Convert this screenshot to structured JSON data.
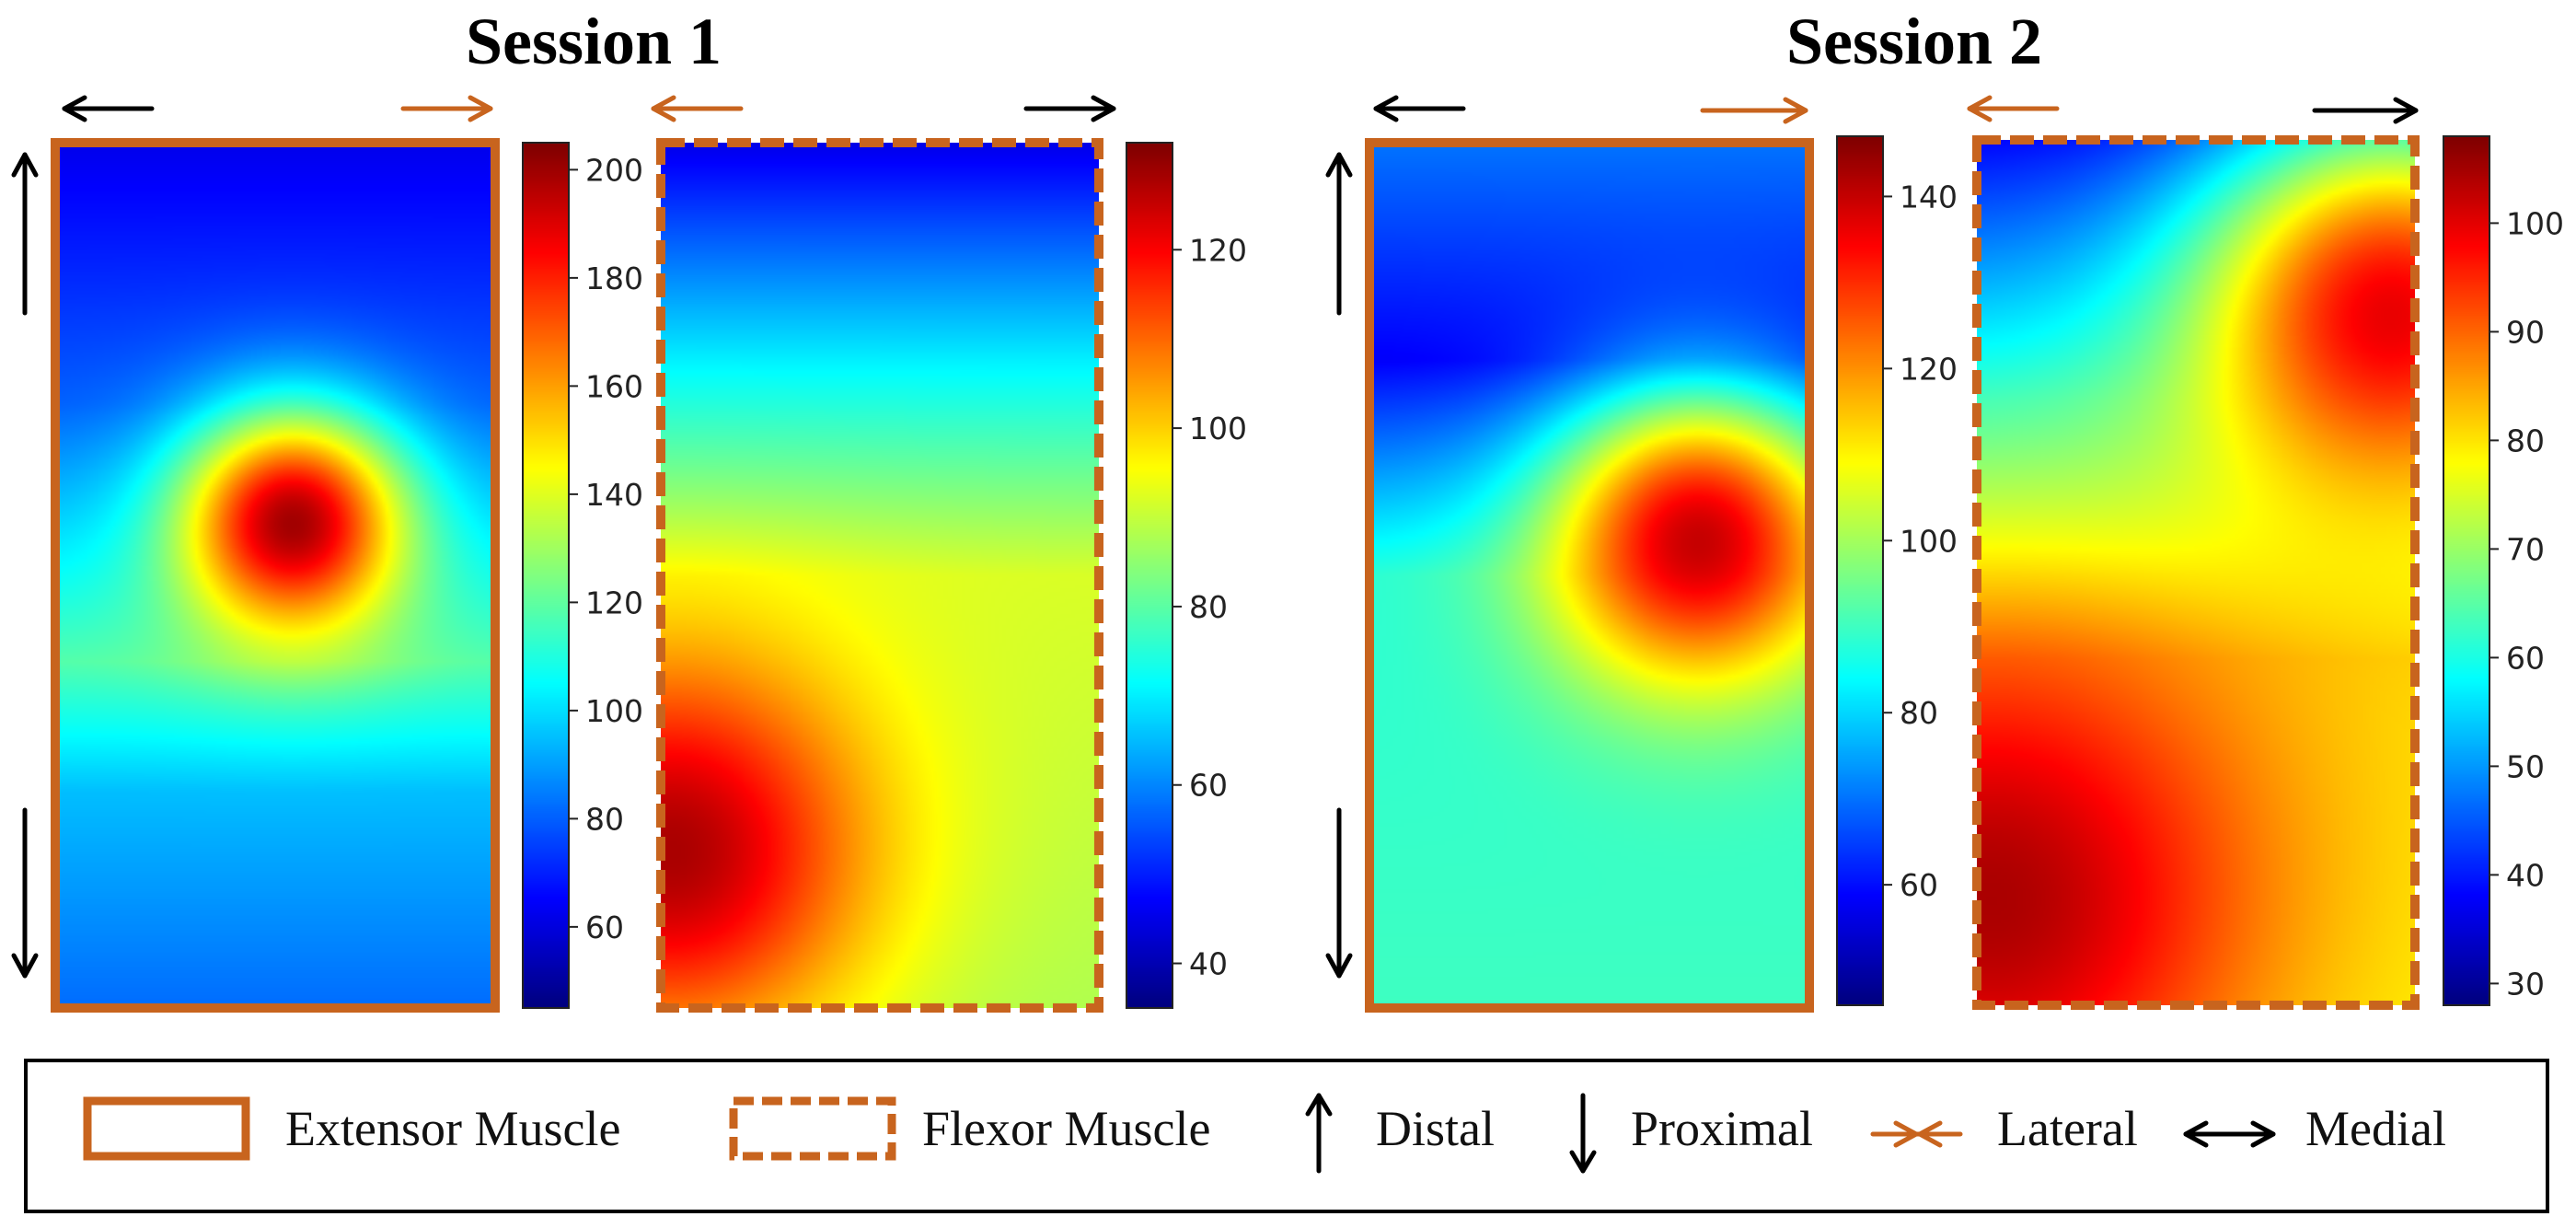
{
  "chart_data": [
    {
      "type": "heatmap",
      "session": "Session 1",
      "muscle": "Extensor Muscle",
      "colorbar": {
        "min": 45,
        "max": 205,
        "ticks": [
          60,
          80,
          100,
          120,
          140,
          160,
          180,
          200
        ]
      },
      "hotspots": [
        {
          "u": 0.54,
          "v": 0.44,
          "value": 205,
          "spread": 0.09
        }
      ],
      "base_gradient": [
        {
          "v": 0.0,
          "value": 62
        },
        {
          "v": 0.3,
          "value": 80
        },
        {
          "v": 0.6,
          "value": 118
        },
        {
          "v": 0.75,
          "value": 95
        },
        {
          "v": 1.0,
          "value": 82
        }
      ]
    },
    {
      "type": "heatmap",
      "session": "Session 1",
      "muscle": "Flexor Muscle",
      "colorbar": {
        "min": 35,
        "max": 132,
        "ticks": [
          40,
          60,
          80,
          100,
          120
        ]
      },
      "hotspots": [
        {
          "u": 0.02,
          "v": 0.82,
          "value": 130,
          "spread": 0.16
        }
      ],
      "base_gradient": [
        {
          "v": 0.0,
          "value": 45
        },
        {
          "v": 0.25,
          "value": 70
        },
        {
          "v": 0.5,
          "value": 92
        },
        {
          "v": 1.0,
          "value": 88
        }
      ]
    },
    {
      "type": "heatmap",
      "session": "Session 2",
      "muscle": "Extensor Muscle",
      "colorbar": {
        "min": 46,
        "max": 147,
        "ticks": [
          60,
          80,
          100,
          120,
          140
        ]
      },
      "hotspots": [
        {
          "u": 0.75,
          "v": 0.46,
          "value": 143,
          "spread": 0.12
        }
      ],
      "base_gradient": [
        {
          "v": 0.0,
          "value": 70
        },
        {
          "v": 0.25,
          "value": 58
        },
        {
          "v": 0.5,
          "value": 88
        },
        {
          "v": 1.0,
          "value": 90
        }
      ]
    },
    {
      "type": "heatmap",
      "session": "Session 2",
      "muscle": "Flexor Muscle",
      "colorbar": {
        "min": 28,
        "max": 108,
        "ticks": [
          30,
          40,
          50,
          60,
          70,
          80,
          90,
          100
        ]
      },
      "hotspots": [
        {
          "u": 0.03,
          "v": 0.88,
          "value": 106,
          "spread": 0.22
        },
        {
          "u": 0.95,
          "v": 0.2,
          "value": 102,
          "spread": 0.16
        }
      ],
      "base_gradient": [
        {
          "v": 0.0,
          "value": 38
        },
        {
          "v": 0.3,
          "value": 62
        },
        {
          "v": 0.6,
          "value": 80
        },
        {
          "v": 1.0,
          "value": 78
        }
      ]
    }
  ],
  "titles": {
    "session1": "Session 1",
    "session2": "Session 2"
  },
  "legend": {
    "extensor": "Extensor Muscle",
    "flexor": "Flexor Muscle",
    "distal": "Distal",
    "proximal": "Proximal",
    "lateral": "Lateral",
    "medial": "Medial"
  },
  "colors": {
    "frame": "#c8641e",
    "arrow_black": "#000000",
    "arrow_orange": "#c8641e"
  }
}
